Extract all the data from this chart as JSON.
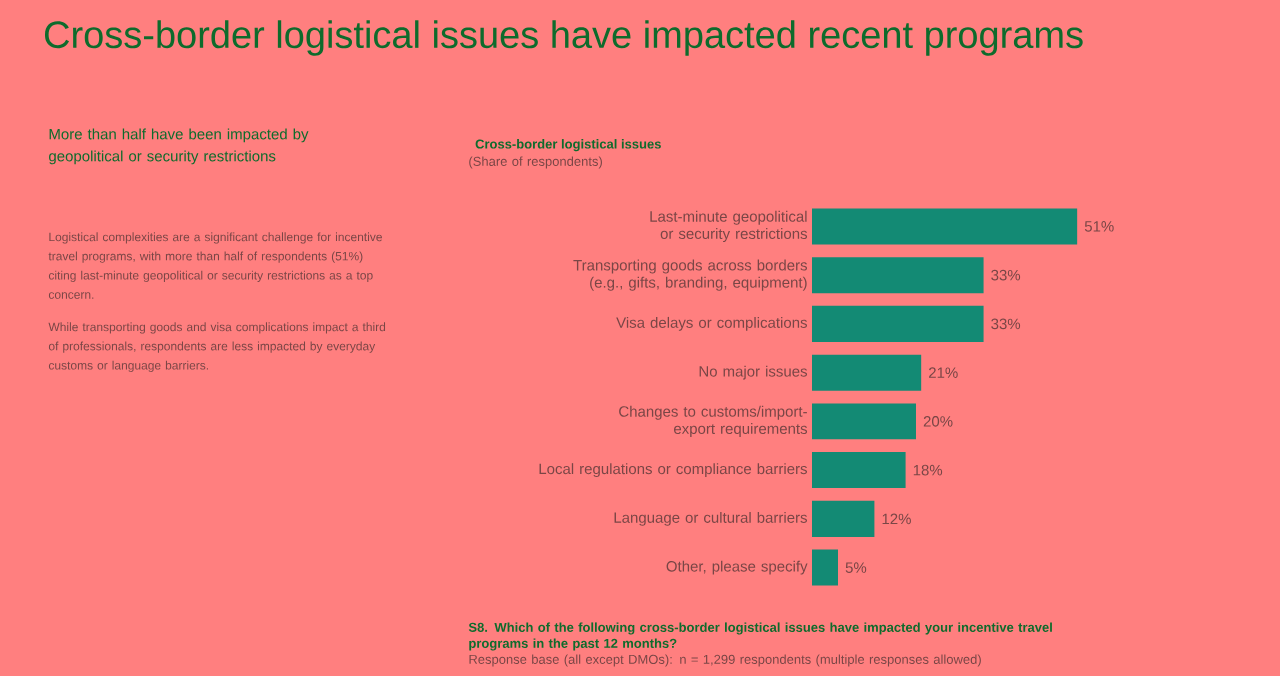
{
  "chart_data": {
    "type": "bar",
    "orientation": "horizontal",
    "title": "Cross-border logistical issues have impacted recent programs",
    "subtitle": "Cross-border logistical issues",
    "categories": [
      "Last-minute geopolitical or security restrictions",
      "Transporting goods across borders (e.g., gifts, branding, equipment)",
      "Visa delays or complications",
      "No major issues",
      "Changes to customs/import-export requirements",
      "Local regulations or compliance barriers",
      "Language or cultural barriers",
      "Other, please specify"
    ],
    "values": [
      51,
      33,
      33,
      21,
      20,
      18,
      12,
      5
    ],
    "value_labels": [
      "51%",
      "33%",
      "33%",
      "21%",
      "20%",
      "18%",
      "12%",
      "5%"
    ],
    "color": "#138a74",
    "annotations": [
      "More than half have been impacted by geopolitical or security restrictions",
      "Logistical complexities are a significant challenge for incentive travel programs, with more than half of respondents (51%) citing last-minute geopolitical or security restrictions as a top concern.",
      "While transporting goods and visa complications impact a third of professionals, respondents are less impacted by everyday customs or language barriers.",
      "(Share of respondents)",
      "S8. Which of the following cross-border logistical issues have impacted your incentive travel programs in the past 12 months?",
      "Response base (all except DMOs): n = 1,299 respondents (multiple responses allowed)"
    ]
  }
}
